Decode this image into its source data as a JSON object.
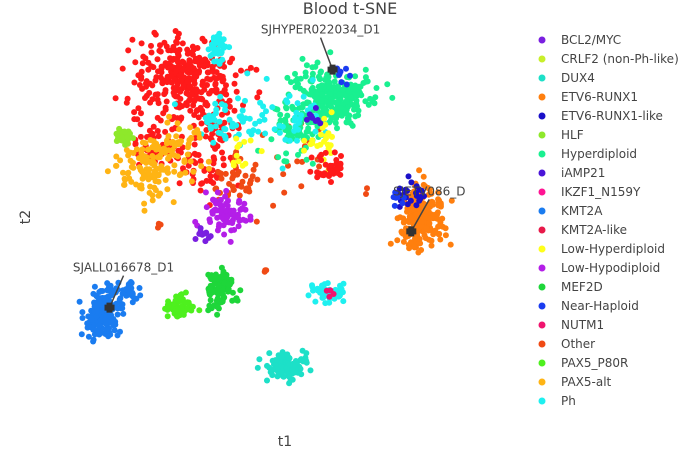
{
  "chart_data": {
    "type": "scatter",
    "title": "Blood t-SNE",
    "xlabel": "t1",
    "ylabel": "t2",
    "xlim": [
      -60,
      65
    ],
    "ylim": [
      -60,
      58
    ],
    "grid": false,
    "legend_position": "right",
    "legend": [
      {
        "name": "BCL2/MYC",
        "color": "#7a1fe0"
      },
      {
        "name": "CRLF2 (non-Ph-like)",
        "color": "#c8ef2a"
      },
      {
        "name": "DUX4",
        "color": "#1de0c8"
      },
      {
        "name": "ETV6-RUNX1",
        "color": "#ff7f0e"
      },
      {
        "name": "ETV6-RUNX1-like",
        "color": "#1a10c8"
      },
      {
        "name": "HLF",
        "color": "#8ee82b"
      },
      {
        "name": "Hyperdiploid",
        "color": "#19f090"
      },
      {
        "name": "iAMP21",
        "color": "#4a14d8"
      },
      {
        "name": "IKZF1_N159Y",
        "color": "#ff1493"
      },
      {
        "name": "KMT2A",
        "color": "#1a7cf0"
      },
      {
        "name": "KMT2A-like",
        "color": "#e8194a"
      },
      {
        "name": "Low-Hyperdiploid",
        "color": "#ffff1a"
      },
      {
        "name": "Low-Hypodiploid",
        "color": "#b41ee8"
      },
      {
        "name": "MEF2D",
        "color": "#1ed63a"
      },
      {
        "name": "Near-Haploid",
        "color": "#1a3cf0"
      },
      {
        "name": "NUTM1",
        "color": "#f0146e"
      },
      {
        "name": "Other",
        "color": "#f04a14"
      },
      {
        "name": "PAX5_P80R",
        "color": "#4ef01e"
      },
      {
        "name": "PAX5-alt",
        "color": "#ffb414"
      },
      {
        "name": "Ph",
        "color": "#1ef0f0"
      }
    ],
    "series": [
      {
        "name": "Other",
        "color": "#ff1a1a",
        "clusters": [
          {
            "x": -28,
            "y": 42,
            "sx": 8,
            "sy": 7,
            "n": 320
          },
          {
            "x": -36,
            "y": 20,
            "sx": 4,
            "sy": 5,
            "n": 50
          },
          {
            "x": -24,
            "y": 14,
            "sx": 5,
            "sy": 4,
            "n": 50
          },
          {
            "x": -18,
            "y": 26,
            "sx": 4,
            "sy": 4,
            "n": 40
          }
        ]
      },
      {
        "name": "Other",
        "color": "#f04a14",
        "clusters": [
          {
            "x": -12,
            "y": 8,
            "sx": 4,
            "sy": 4,
            "n": 45
          },
          {
            "x": -36,
            "y": -6,
            "sx": 0.6,
            "sy": 0.6,
            "n": 3
          },
          {
            "x": -4,
            "y": -21,
            "sx": 0.5,
            "sy": 0.5,
            "n": 3
          },
          {
            "x": 27,
            "y": 5,
            "sx": 0.5,
            "sy": 0.5,
            "n": 2
          },
          {
            "x": 4,
            "y": 18,
            "sx": 6,
            "sy": 8,
            "n": 18
          }
        ]
      },
      {
        "name": "Hyperdiploid",
        "color": "#19f090",
        "clusters": [
          {
            "x": 16,
            "y": 36,
            "sx": 6,
            "sy": 5,
            "n": 260
          },
          {
            "x": 5,
            "y": 24,
            "sx": 4,
            "sy": 5,
            "n": 60
          }
        ]
      },
      {
        "name": "Ph",
        "color": "#1ef0f0",
        "clusters": [
          {
            "x": -18,
            "y": 52,
            "sx": 1.2,
            "sy": 3,
            "n": 40
          },
          {
            "x": -14,
            "y": 28,
            "sx": 6,
            "sy": 4,
            "n": 60
          },
          {
            "x": 5,
            "y": 30,
            "sx": 5,
            "sy": 6,
            "n": 35
          }
        ]
      },
      {
        "name": "PAX5-alt",
        "color": "#ffb414",
        "clusters": [
          {
            "x": -38,
            "y": 12,
            "sx": 5,
            "sy": 5,
            "n": 120
          },
          {
            "x": -29,
            "y": 20,
            "sx": 4,
            "sy": 4,
            "n": 40
          }
        ]
      },
      {
        "name": "Low-Hyperdiploid",
        "color": "#ffff1a",
        "clusters": [
          {
            "x": 14,
            "y": 22,
            "sx": 3,
            "sy": 4,
            "n": 25
          }
        ]
      },
      {
        "name": "Other",
        "color": "#ff1a1a",
        "clusters": [
          {
            "x": 16,
            "y": 13,
            "sx": 2.5,
            "sy": 2.5,
            "n": 35
          }
        ]
      },
      {
        "name": "ETV6-RUNX1",
        "color": "#ff7f0e",
        "clusters": [
          {
            "x": 44,
            "y": -3,
            "sx": 3.5,
            "sy": 4.5,
            "n": 230
          }
        ]
      },
      {
        "name": "ETV6-RUNX1-like",
        "color": "#1a10c8",
        "clusters": [
          {
            "x": 40,
            "y": 4,
            "sx": 3,
            "sy": 2,
            "n": 25
          }
        ]
      },
      {
        "name": "Low-Hypodiploid",
        "color": "#b41ee8",
        "clusters": [
          {
            "x": -16,
            "y": -2,
            "sx": 3,
            "sy": 3,
            "n": 80
          }
        ]
      },
      {
        "name": "BCL2/MYC",
        "color": "#7a1fe0",
        "clusters": [
          {
            "x": -23,
            "y": -9,
            "sx": 1.2,
            "sy": 1.2,
            "n": 10
          }
        ]
      },
      {
        "name": "HLF",
        "color": "#8ee82b",
        "clusters": [
          {
            "x": -47,
            "y": 23,
            "sx": 1.3,
            "sy": 1.3,
            "n": 45
          }
        ]
      },
      {
        "name": "MEF2D",
        "color": "#1ed63a",
        "clusters": [
          {
            "x": -17,
            "y": -27,
            "sx": 2.2,
            "sy": 3,
            "n": 100
          }
        ]
      },
      {
        "name": "PAX5_P80R",
        "color": "#4ef01e",
        "clusters": [
          {
            "x": -30,
            "y": -33,
            "sx": 1.8,
            "sy": 1.5,
            "n": 60
          }
        ]
      },
      {
        "name": "KMT2A",
        "color": "#1a7cf0",
        "clusters": [
          {
            "x": -53,
            "y": -35,
            "sx": 3,
            "sy": 3.5,
            "n": 170
          },
          {
            "x": -45,
            "y": -28,
            "sx": 2,
            "sy": 2,
            "n": 25
          }
        ]
      },
      {
        "name": "DUX4",
        "color": "#1de0c8",
        "clusters": [
          {
            "x": 3,
            "y": -52,
            "sx": 3,
            "sy": 2,
            "n": 120
          }
        ]
      },
      {
        "name": "Ph",
        "color": "#1ef0f0",
        "clusters": [
          {
            "x": 15,
            "y": -28,
            "sx": 2.5,
            "sy": 2,
            "n": 50
          }
        ]
      },
      {
        "name": "NUTM1",
        "color": "#f0146e",
        "clusters": [
          {
            "x": 16,
            "y": -28,
            "sx": 0.8,
            "sy": 0.8,
            "n": 4
          }
        ]
      },
      {
        "name": "Near-Haploid",
        "color": "#1a3cf0",
        "clusters": [
          {
            "x": 37,
            "y": 3,
            "sx": 1,
            "sy": 1,
            "n": 8
          },
          {
            "x": 20,
            "y": 44,
            "sx": 2,
            "sy": 2,
            "n": 8
          }
        ]
      },
      {
        "name": "iAMP21",
        "color": "#4a14d8",
        "clusters": [
          {
            "x": 12,
            "y": 28,
            "sx": 2,
            "sy": 2,
            "n": 8
          }
        ]
      },
      {
        "name": "Low-Hyperdiploid",
        "color": "#ffff1a",
        "clusters": [
          {
            "x": -10,
            "y": 18,
            "sx": 3,
            "sy": 3,
            "n": 12
          }
        ]
      }
    ],
    "annotations": [
      {
        "text": "SJHYPER022034_D1",
        "x": 17,
        "y": 45
      },
      {
        "text": "SJALL016678_D1",
        "x": -51,
        "y": -33
      },
      {
        "text": "SJETV086_D",
        "x": 41,
        "y": -8
      }
    ]
  }
}
